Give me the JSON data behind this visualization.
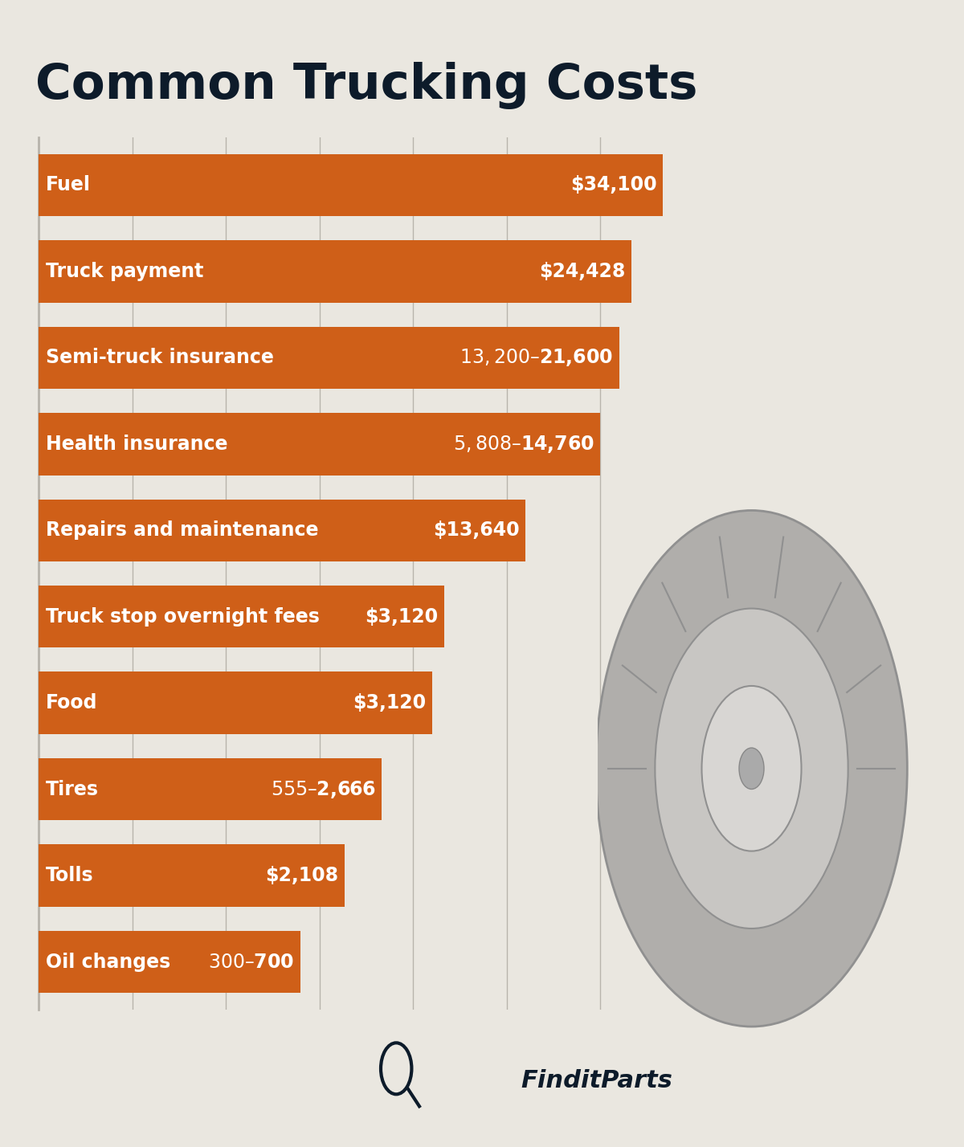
{
  "title": "Common Trucking Costs",
  "title_fontsize": 44,
  "title_color": "#0d1b2a",
  "background_color": "#eae7e0",
  "bar_color": "#cf5f18",
  "categories": [
    "Oil changes",
    "Tolls",
    "Tires",
    "Food",
    "Truck stop overnight fees",
    "Repairs and maintenance",
    "Health insurance",
    "Semi-truck insurance",
    "Truck payment",
    "Fuel"
  ],
  "bar_values": [
    42,
    49,
    55,
    63,
    65,
    78,
    90,
    93,
    95,
    100
  ],
  "value_labels": [
    "$300–$700",
    "$2,108",
    "$555–$2,666",
    "$3,120",
    "$3,120",
    "$13,640",
    "$5,808–$14,760",
    "$13,200–$21,600",
    "$24,428",
    "$34,100"
  ],
  "xlim": [
    0,
    105
  ],
  "label_fontsize": 17,
  "value_fontsize": 17,
  "bar_height": 0.72,
  "grid_color": "#b8b4ac",
  "text_color": "#ffffff",
  "xtick_vals": [
    0,
    15,
    30,
    45,
    60,
    75,
    90
  ],
  "logo_text": "FinditParts",
  "logo_fontsize": 22,
  "logo_color": "#0d1b2a"
}
